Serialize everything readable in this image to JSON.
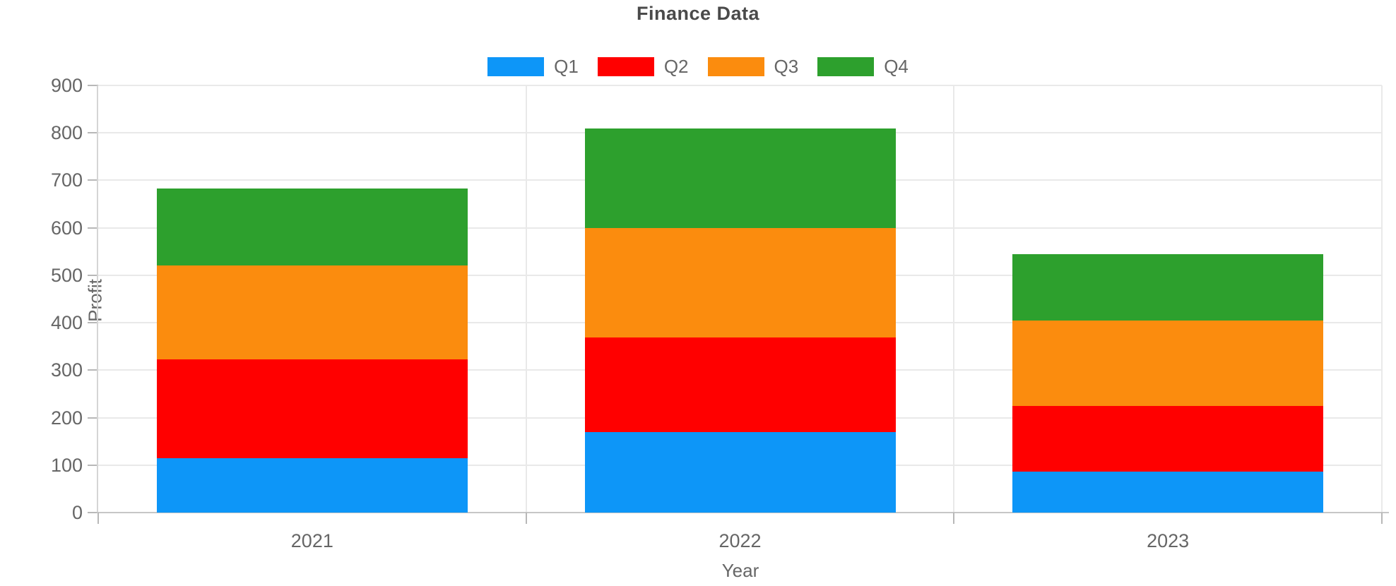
{
  "chart_data": {
    "type": "bar",
    "stacked": true,
    "title": "Finance Data",
    "xlabel": "Year",
    "ylabel": "Profit",
    "categories": [
      "2021",
      "2022",
      "2023"
    ],
    "series": [
      {
        "name": "Q1",
        "color": "#0D96F8",
        "values": [
          115,
          170,
          86
        ]
      },
      {
        "name": "Q2",
        "color": "#FF0000",
        "values": [
          208,
          199,
          139
        ]
      },
      {
        "name": "Q3",
        "color": "#FB8C0E",
        "values": [
          197,
          231,
          180
        ]
      },
      {
        "name": "Q4",
        "color": "#2DA02D",
        "values": [
          163,
          210,
          140
        ]
      }
    ],
    "stack_totals": [
      683,
      810,
      545
    ],
    "ylim": [
      0,
      900
    ],
    "ytick_step": 100,
    "yticks": [
      0,
      100,
      200,
      300,
      400,
      500,
      600,
      700,
      800,
      900
    ],
    "legend": [
      "Q1",
      "Q2",
      "Q3",
      "Q4"
    ],
    "legend_position": "top-center",
    "grid": true
  },
  "colors": {
    "background": "#FFFFFF",
    "grid_line": "#E9E9E9",
    "split_line": "#E9E9E9",
    "axis_line": "#C6C6C6",
    "y_axis_line": "#D5D5D5",
    "tick": "#B8B8B8",
    "title_text": "#4A4A4A",
    "label_text": "#666666",
    "series": {
      "Q1": "#0D96F8",
      "Q2": "#FF0000",
      "Q3": "#FB8C0E",
      "Q4": "#2DA02D"
    }
  }
}
